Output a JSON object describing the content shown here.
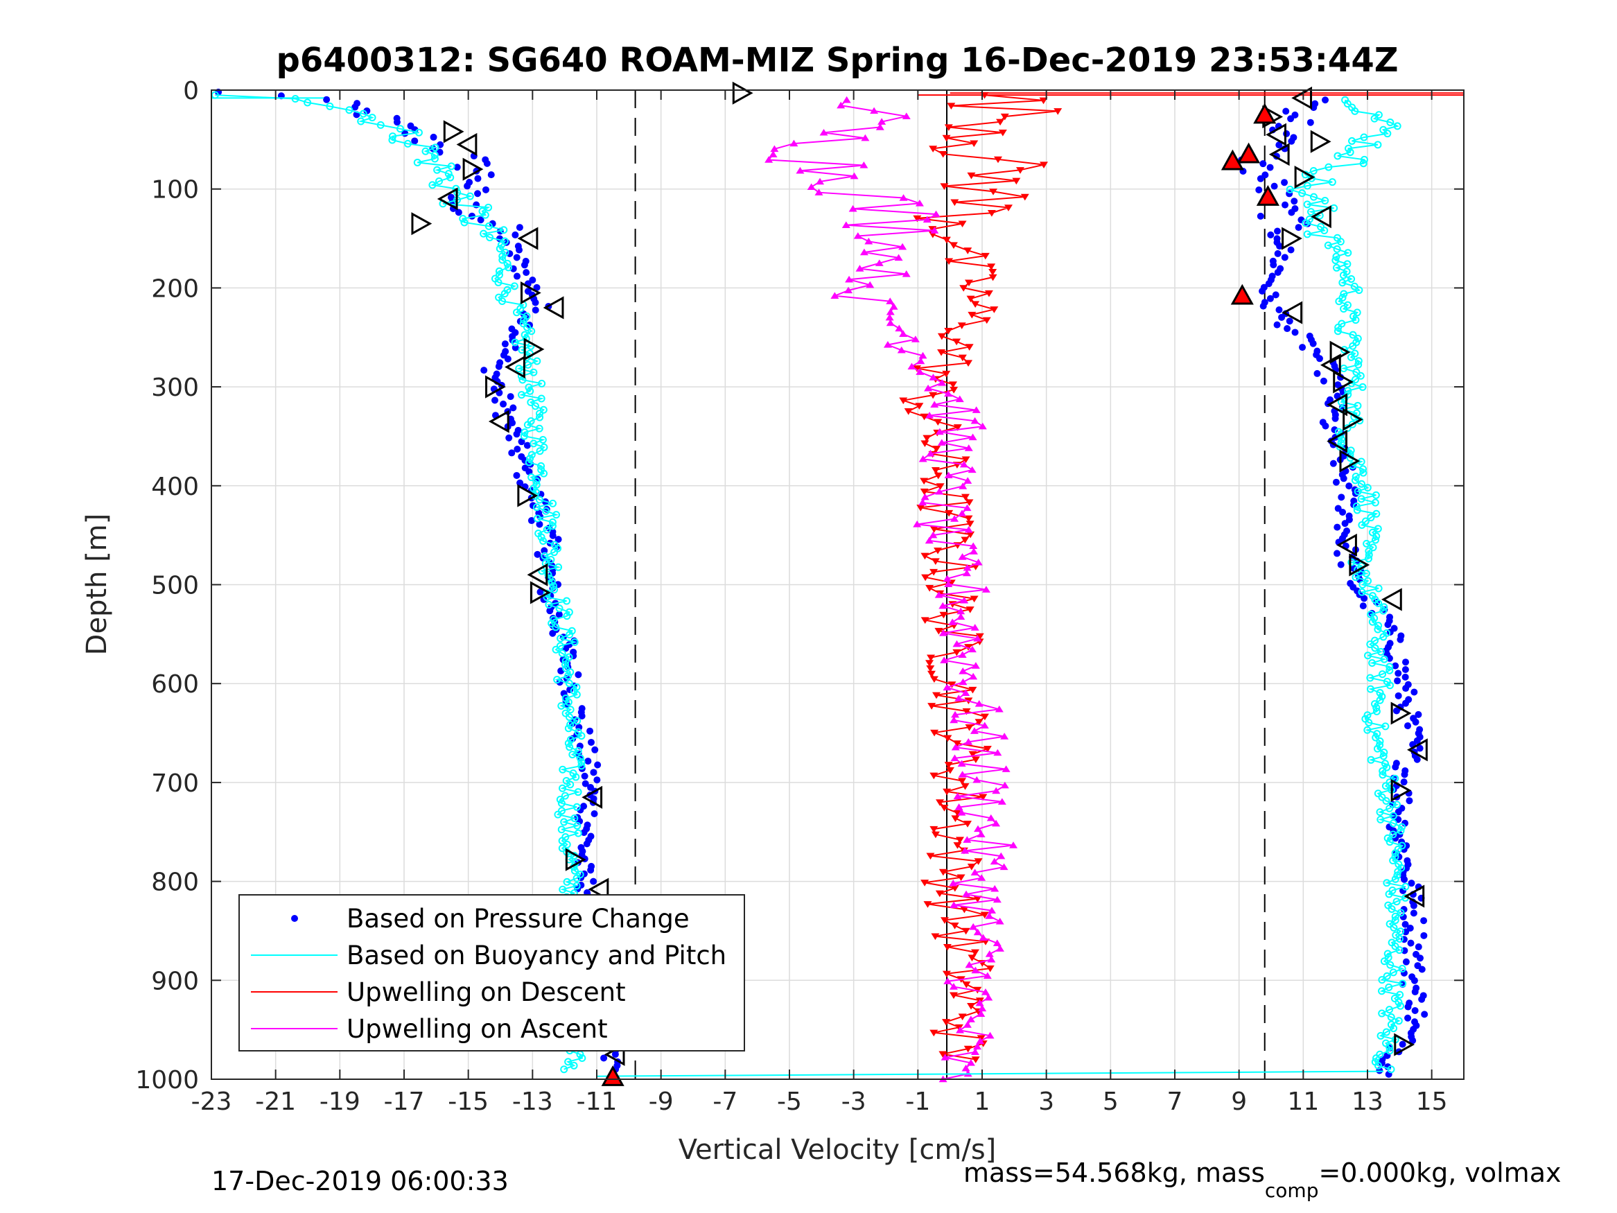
{
  "chart_data": {
    "type": "scatter",
    "title": "p6400312: SG640 ROAM-MIZ Spring 16-Dec-2019 23:53:44Z",
    "xlabel": "Vertical Velocity [cm/s]",
    "ylabel": "Depth [m]",
    "xlim": [
      -23,
      16
    ],
    "ylim": [
      1000,
      0
    ],
    "y_reversed": true,
    "grid": true,
    "legend_position": "bottom-left",
    "x_ticks": [
      -23,
      -21,
      -19,
      -17,
      -15,
      -13,
      -11,
      -9,
      -7,
      -5,
      -3,
      -1,
      1,
      3,
      5,
      7,
      9,
      11,
      13,
      15
    ],
    "x_tick_labels": [
      "-23",
      "-21",
      "-19",
      "-17",
      "-15",
      "-13",
      "-11",
      "-9",
      "-7",
      "-5",
      "-3",
      "-1",
      "1",
      "3",
      "5",
      "7",
      "9",
      "11",
      "13",
      "15"
    ],
    "y_ticks": [
      0,
      100,
      200,
      300,
      400,
      500,
      600,
      700,
      800,
      900,
      1000
    ],
    "y_tick_labels": [
      "0",
      "100",
      "200",
      "300",
      "400",
      "500",
      "600",
      "700",
      "800",
      "900",
      "1000"
    ],
    "reference_lines": {
      "dashed_x": [
        -9.8,
        9.8
      ],
      "solid_x": [
        -0.1
      ]
    },
    "legend": [
      {
        "label": "Based on Pressure Change",
        "color": "#0000ff",
        "style": "dot"
      },
      {
        "label": "Based on Buoyancy and Pitch",
        "color": "#00ffff",
        "style": "line"
      },
      {
        "label": "Upwelling on Descent",
        "color": "#ff0000",
        "style": "line"
      },
      {
        "label": "Upwelling on Ascent",
        "color": "#ff00ff",
        "style": "line"
      }
    ],
    "series": [
      {
        "name": "Based on Pressure Change",
        "subset": "descent",
        "color": "#0000ff",
        "points": [
          [
            -23,
            2
          ],
          [
            -21,
            4
          ],
          [
            -19.5,
            10
          ],
          [
            -18,
            25
          ],
          [
            -17,
            40
          ],
          [
            -16,
            55
          ],
          [
            -15,
            70
          ],
          [
            -14.5,
            90
          ],
          [
            -15.5,
            110
          ],
          [
            -14,
            140
          ],
          [
            -13.5,
            170
          ],
          [
            -13,
            200
          ],
          [
            -12.8,
            220
          ],
          [
            -13.5,
            250
          ],
          [
            -14.2,
            280
          ],
          [
            -14,
            310
          ],
          [
            -13.6,
            350
          ],
          [
            -13.2,
            390
          ],
          [
            -12.8,
            420
          ],
          [
            -12.5,
            460
          ],
          [
            -12.5,
            510
          ],
          [
            -12,
            560
          ],
          [
            -11.8,
            600
          ],
          [
            -11.5,
            650
          ],
          [
            -11.2,
            700
          ],
          [
            -11.3,
            750
          ],
          [
            -11.5,
            790
          ],
          [
            -11,
            830
          ],
          [
            -10.8,
            870
          ],
          [
            -10.7,
            910
          ],
          [
            -10.5,
            950
          ],
          [
            -10.6,
            990
          ]
        ]
      },
      {
        "name": "Based on Buoyancy and Pitch",
        "subset": "descent",
        "color": "#00ffff",
        "points": [
          [
            -22.5,
            5
          ],
          [
            -20,
            8
          ],
          [
            -18.5,
            20
          ],
          [
            -17.5,
            35
          ],
          [
            -16.5,
            55
          ],
          [
            -16,
            75
          ],
          [
            -15.5,
            100
          ],
          [
            -14.8,
            130
          ],
          [
            -14,
            160
          ],
          [
            -13.8,
            200
          ],
          [
            -13.4,
            240
          ],
          [
            -13.1,
            280
          ],
          [
            -13,
            320
          ],
          [
            -12.9,
            360
          ],
          [
            -12.7,
            400
          ],
          [
            -12.5,
            440
          ],
          [
            -12.4,
            480
          ],
          [
            -12.2,
            520
          ],
          [
            -12,
            560
          ],
          [
            -11.9,
            600
          ],
          [
            -11.8,
            650
          ],
          [
            -11.8,
            700
          ],
          [
            -11.9,
            750
          ],
          [
            -11.8,
            800
          ],
          [
            -11.7,
            850
          ],
          [
            -11.6,
            900
          ],
          [
            -11.6,
            950
          ],
          [
            -11.8,
            990
          ]
        ]
      },
      {
        "name": "Based on Pressure Change",
        "subset": "ascent",
        "color": "#0000ff",
        "points": [
          [
            11.5,
            10
          ],
          [
            10.5,
            40
          ],
          [
            9.5,
            75
          ],
          [
            10,
            100
          ],
          [
            10.5,
            140
          ],
          [
            10.2,
            180
          ],
          [
            9.8,
            210
          ],
          [
            10.6,
            240
          ],
          [
            11.5,
            270
          ],
          [
            12,
            300
          ],
          [
            11.8,
            340
          ],
          [
            12.2,
            380
          ],
          [
            12.4,
            420
          ],
          [
            12.3,
            460
          ],
          [
            12.6,
            500
          ],
          [
            13.6,
            540
          ],
          [
            14,
            580
          ],
          [
            14.2,
            620
          ],
          [
            14.4,
            660
          ],
          [
            14.1,
            700
          ],
          [
            14,
            750
          ],
          [
            14.3,
            800
          ],
          [
            14.5,
            850
          ],
          [
            14.4,
            900
          ],
          [
            14.6,
            930
          ],
          [
            14,
            970
          ],
          [
            13.5,
            995
          ]
        ]
      },
      {
        "name": "Based on Buoyancy and Pitch",
        "subset": "ascent",
        "color": "#00ffff",
        "points": [
          [
            13,
            10
          ],
          [
            13.5,
            40
          ],
          [
            12.5,
            70
          ],
          [
            11,
            100
          ],
          [
            11.5,
            130
          ],
          [
            12,
            160
          ],
          [
            12.5,
            200
          ],
          [
            12.3,
            240
          ],
          [
            12.6,
            280
          ],
          [
            12.5,
            320
          ],
          [
            12.4,
            360
          ],
          [
            13,
            400
          ],
          [
            13,
            440
          ],
          [
            12.8,
            480
          ],
          [
            13.2,
            520
          ],
          [
            13.3,
            560
          ],
          [
            13.4,
            600
          ],
          [
            13.2,
            650
          ],
          [
            13.6,
            700
          ],
          [
            13.8,
            750
          ],
          [
            13.9,
            800
          ],
          [
            13.8,
            850
          ],
          [
            13.8,
            900
          ],
          [
            13.7,
            940
          ],
          [
            13.5,
            990
          ]
        ]
      },
      {
        "name": "Upwelling on Descent",
        "color": "#ff0000",
        "points": [
          [
            1.5,
            5
          ],
          [
            2,
            30
          ],
          [
            1,
            60
          ],
          [
            1.5,
            90
          ],
          [
            0.5,
            130
          ],
          [
            0.3,
            170
          ],
          [
            0.8,
            200
          ],
          [
            0.6,
            240
          ],
          [
            -0.2,
            280
          ],
          [
            -0.8,
            320
          ],
          [
            -0.4,
            360
          ],
          [
            -0.2,
            400
          ],
          [
            -0.1,
            450
          ],
          [
            0,
            500
          ],
          [
            0.1,
            550
          ],
          [
            0.2,
            600
          ],
          [
            0.4,
            650
          ],
          [
            0.3,
            700
          ],
          [
            0.2,
            750
          ],
          [
            0.1,
            800
          ],
          [
            0.3,
            850
          ],
          [
            0.5,
            900
          ],
          [
            0.4,
            940
          ],
          [
            0.2,
            980
          ]
        ]
      },
      {
        "name": "Upwelling on Ascent",
        "color": "#ff00ff",
        "points": [
          [
            -2,
            10
          ],
          [
            -3.5,
            40
          ],
          [
            -4,
            70
          ],
          [
            -2.5,
            100
          ],
          [
            -1.5,
            140
          ],
          [
            -2,
            180
          ],
          [
            -2.8,
            210
          ],
          [
            -1.5,
            240
          ],
          [
            -0.5,
            280
          ],
          [
            0.2,
            320
          ],
          [
            0.1,
            360
          ],
          [
            -0.2,
            400
          ],
          [
            -0.3,
            450
          ],
          [
            0.3,
            500
          ],
          [
            0.5,
            550
          ],
          [
            0.6,
            600
          ],
          [
            0.8,
            650
          ],
          [
            1,
            700
          ],
          [
            1.1,
            750
          ],
          [
            1,
            800
          ],
          [
            0.9,
            850
          ],
          [
            0.8,
            900
          ],
          [
            0.6,
            950
          ],
          [
            -0.1,
            1000
          ]
        ]
      }
    ],
    "markers": {
      "open_triangles": [
        [
          -15.5,
          42
        ],
        [
          -15,
          55
        ],
        [
          -14.9,
          80
        ],
        [
          -15.6,
          110
        ],
        [
          -16.5,
          135
        ],
        [
          -13.1,
          150
        ],
        [
          -13.1,
          205
        ],
        [
          -12.3,
          220
        ],
        [
          -13,
          262
        ],
        [
          -13.5,
          280
        ],
        [
          -14.2,
          300
        ],
        [
          -14,
          335
        ],
        [
          -13.2,
          410
        ],
        [
          -12.8,
          490
        ],
        [
          -12.8,
          508
        ],
        [
          -11.1,
          715
        ],
        [
          -11.7,
          778
        ],
        [
          -10.9,
          808
        ],
        [
          -11.4,
          845
        ],
        [
          -10.8,
          880
        ],
        [
          -10.9,
          940
        ],
        [
          -10.4,
          975
        ],
        [
          -6.5,
          3
        ],
        [
          11,
          8
        ],
        [
          10,
          27
        ],
        [
          10.2,
          45
        ],
        [
          11.5,
          52
        ],
        [
          10.3,
          65
        ],
        [
          11,
          88
        ],
        [
          11.6,
          128
        ],
        [
          10.6,
          150
        ],
        [
          10.7,
          225
        ],
        [
          12.1,
          265
        ],
        [
          11.9,
          278
        ],
        [
          12.2,
          295
        ],
        [
          12.1,
          318
        ],
        [
          12.5,
          333
        ],
        [
          12.1,
          355
        ],
        [
          12.4,
          375
        ],
        [
          12.4,
          460
        ],
        [
          12.7,
          480
        ],
        [
          13.8,
          515
        ],
        [
          14,
          630
        ],
        [
          14.6,
          667
        ],
        [
          14,
          708
        ],
        [
          14.5,
          815
        ],
        [
          14.1,
          965
        ]
      ],
      "red_filled_triangles": [
        [
          9.8,
          25
        ],
        [
          9.3,
          65
        ],
        [
          8.8,
          72
        ],
        [
          9.9,
          108
        ],
        [
          9.1,
          208
        ],
        [
          -10.5,
          998
        ]
      ]
    }
  },
  "footer": {
    "timestamp": "17-Dec-2019 06:00:33",
    "mass_part1": "mass=54.568kg, mass",
    "mass_sub": "comp",
    "mass_part2": "=0.000kg, volmax"
  }
}
